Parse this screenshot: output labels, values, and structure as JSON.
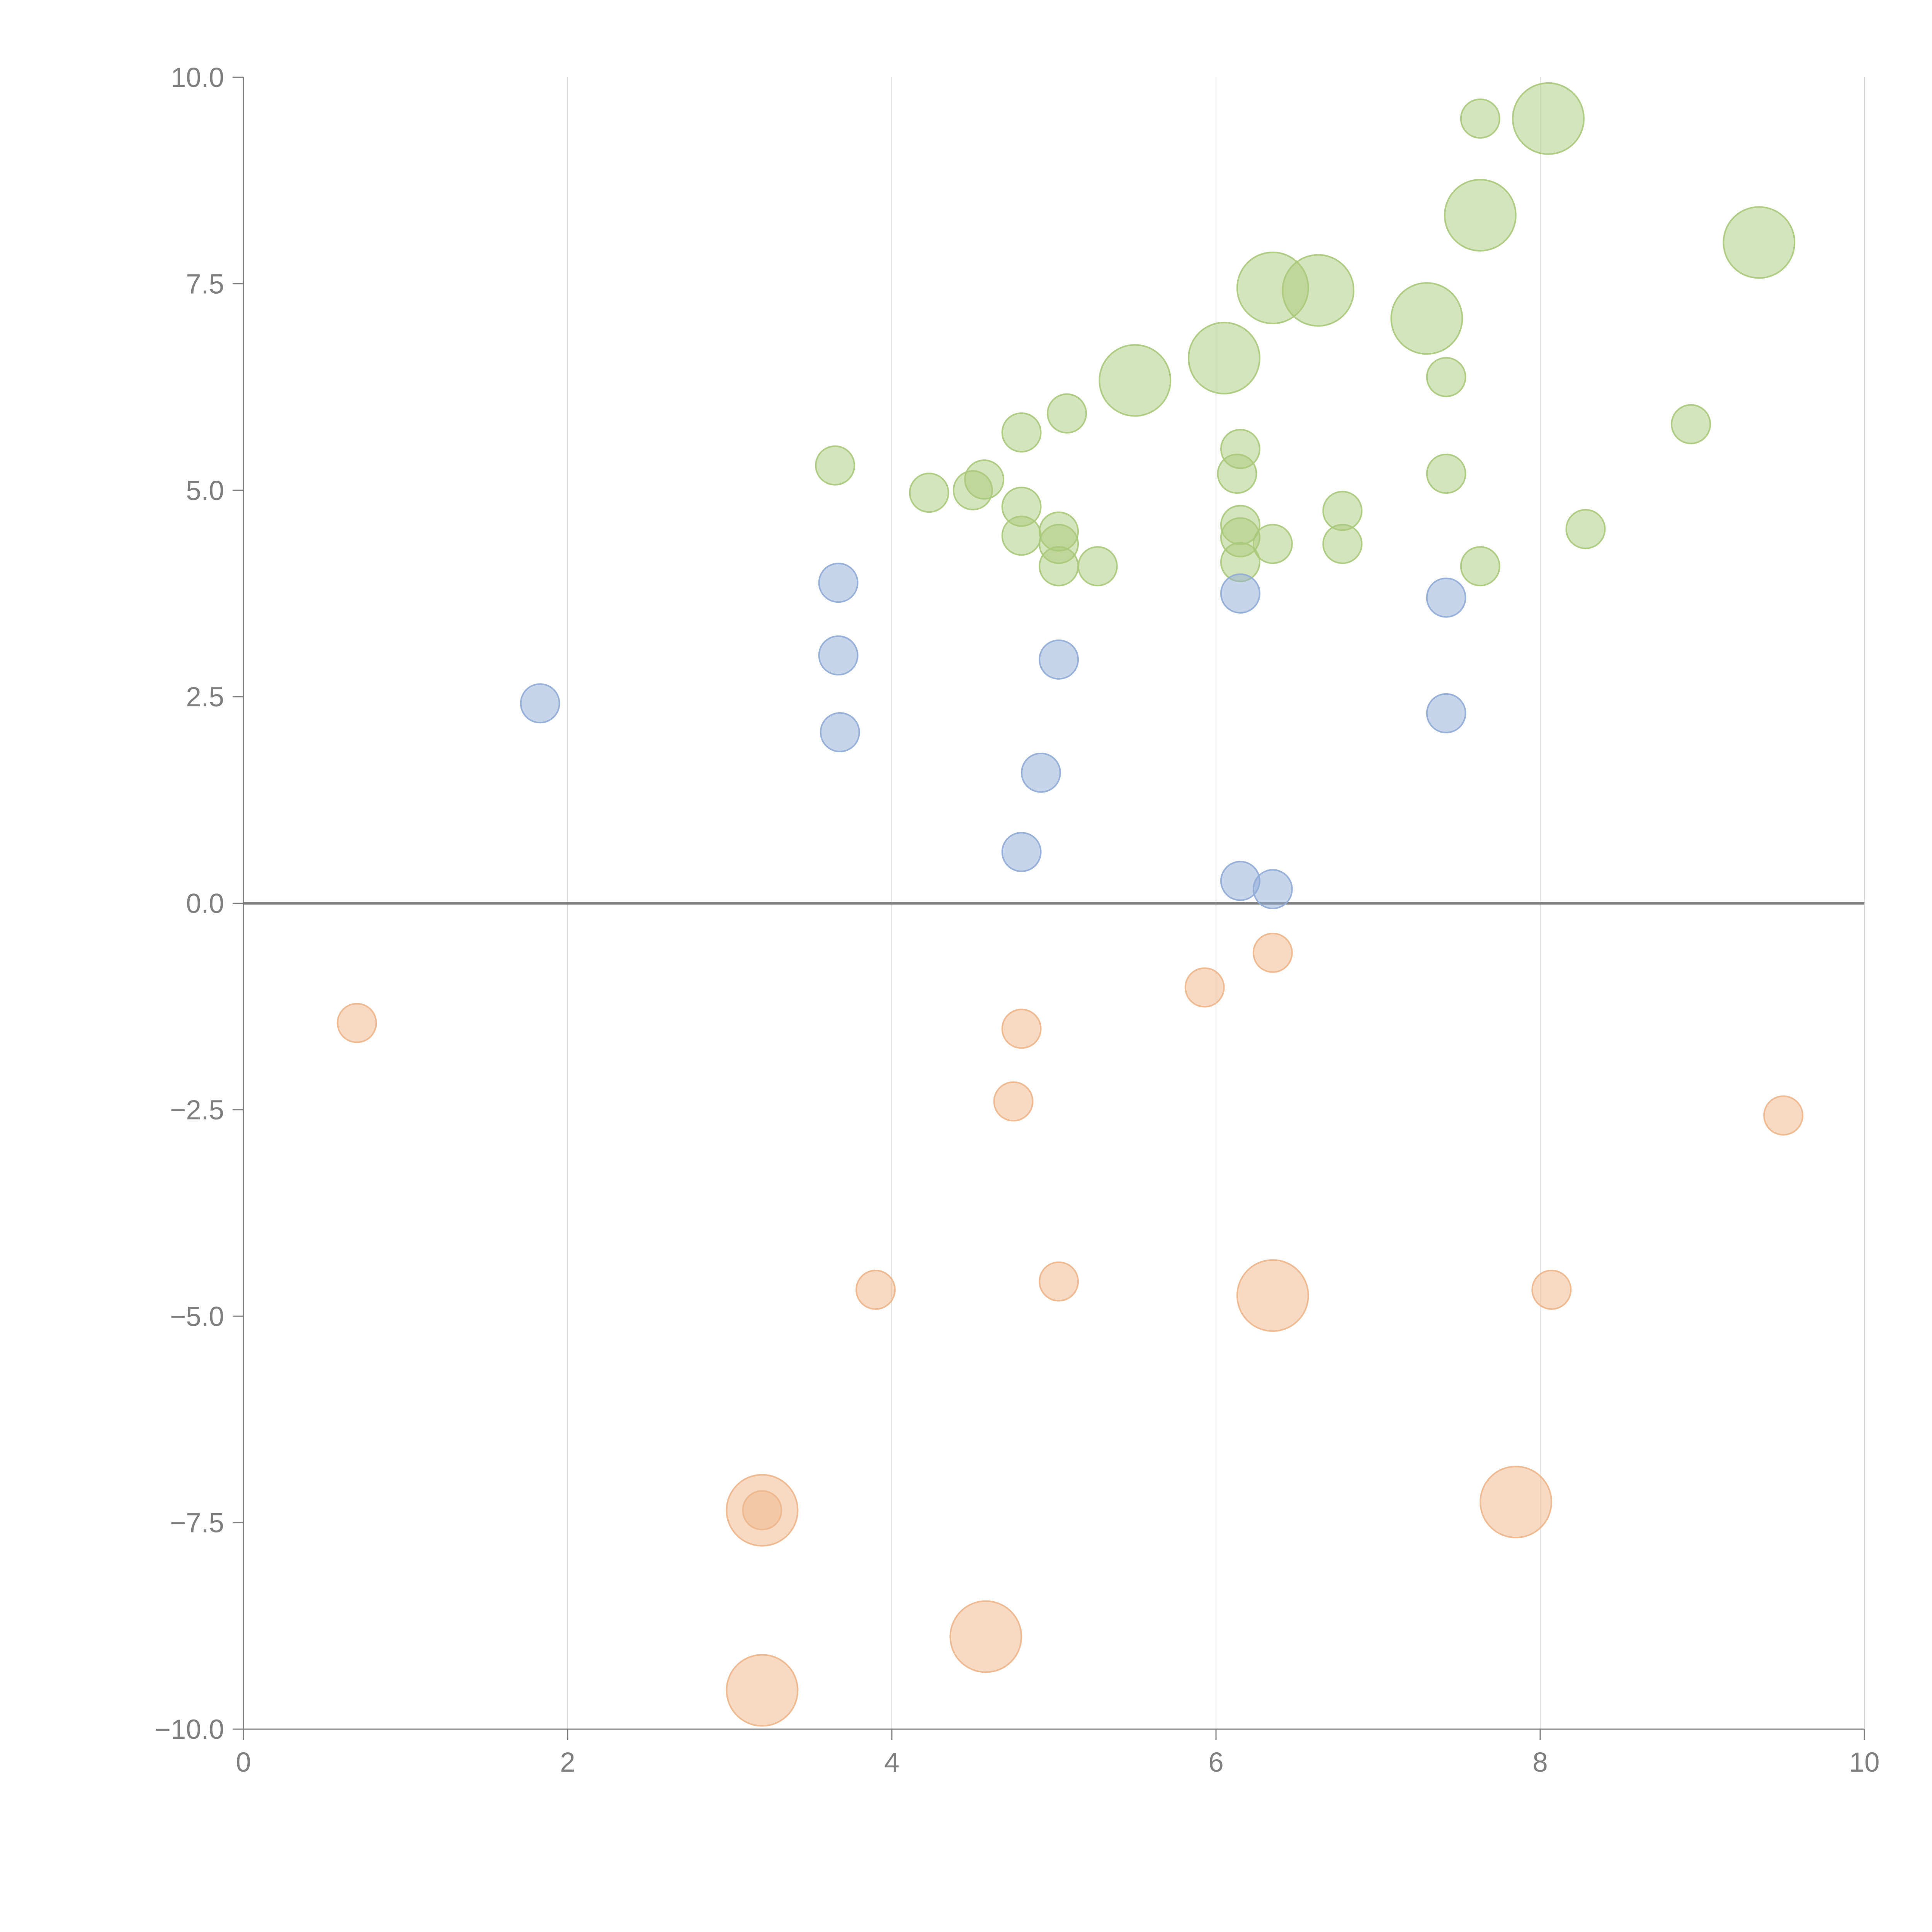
{
  "chart_data": {
    "type": "scatter",
    "subtype": "bubble",
    "title": "",
    "xlabel": "",
    "ylabel": "",
    "xlim": [
      0,
      10
    ],
    "ylim": [
      -10,
      10
    ],
    "x_ticks": [
      0,
      2,
      4,
      6,
      8,
      10
    ],
    "y_ticks": [
      -10,
      -7.5,
      -5,
      -2.5,
      0,
      2.5,
      5,
      7.5,
      10
    ],
    "x_tick_labels": [
      "0",
      "2",
      "4",
      "6",
      "8",
      "10"
    ],
    "y_tick_labels": [
      "−10.0",
      "−7.5",
      "−5.0",
      "−2.5",
      "0.0",
      "2.5",
      "5.0",
      "7.5",
      "10.0"
    ],
    "grid": {
      "vertical": true,
      "horizontal": false
    },
    "reference_line_y": 0,
    "series": [
      {
        "name": "green",
        "color": "#a9c97a",
        "points": [
          {
            "x": 3.65,
            "y": 5.3,
            "size": 1
          },
          {
            "x": 4.23,
            "y": 4.97,
            "size": 1
          },
          {
            "x": 4.5,
            "y": 5.0,
            "size": 1
          },
          {
            "x": 4.57,
            "y": 5.13,
            "size": 1
          },
          {
            "x": 4.8,
            "y": 5.7,
            "size": 1
          },
          {
            "x": 4.8,
            "y": 4.8,
            "size": 1
          },
          {
            "x": 4.8,
            "y": 4.45,
            "size": 1
          },
          {
            "x": 5.03,
            "y": 4.5,
            "size": 1
          },
          {
            "x": 5.03,
            "y": 4.35,
            "size": 1
          },
          {
            "x": 5.03,
            "y": 4.08,
            "size": 1
          },
          {
            "x": 5.08,
            "y": 5.93,
            "size": 1
          },
          {
            "x": 5.27,
            "y": 4.08,
            "size": 1
          },
          {
            "x": 5.5,
            "y": 6.33,
            "size": 3
          },
          {
            "x": 6.05,
            "y": 6.6,
            "size": 3
          },
          {
            "x": 6.13,
            "y": 5.2,
            "size": 1
          },
          {
            "x": 6.15,
            "y": 5.5,
            "size": 1
          },
          {
            "x": 6.15,
            "y": 4.58,
            "size": 1
          },
          {
            "x": 6.15,
            "y": 4.43,
            "size": 1
          },
          {
            "x": 6.15,
            "y": 4.13,
            "size": 1
          },
          {
            "x": 6.35,
            "y": 4.35,
            "size": 1
          },
          {
            "x": 6.35,
            "y": 7.45,
            "size": 3
          },
          {
            "x": 6.63,
            "y": 7.42,
            "size": 3
          },
          {
            "x": 6.78,
            "y": 4.75,
            "size": 1
          },
          {
            "x": 6.78,
            "y": 4.35,
            "size": 1
          },
          {
            "x": 7.3,
            "y": 7.08,
            "size": 3
          },
          {
            "x": 7.42,
            "y": 6.37,
            "size": 1
          },
          {
            "x": 7.42,
            "y": 5.2,
            "size": 1
          },
          {
            "x": 7.63,
            "y": 8.33,
            "size": 3
          },
          {
            "x": 7.63,
            "y": 9.5,
            "size": 1
          },
          {
            "x": 7.63,
            "y": 4.08,
            "size": 1
          },
          {
            "x": 8.05,
            "y": 9.5,
            "size": 3
          },
          {
            "x": 8.28,
            "y": 4.53,
            "size": 1
          },
          {
            "x": 8.93,
            "y": 5.8,
            "size": 1
          },
          {
            "x": 9.35,
            "y": 8.0,
            "size": 3
          }
        ]
      },
      {
        "name": "blue",
        "color": "#8fabd6",
        "points": [
          {
            "x": 1.83,
            "y": 2.42,
            "size": 1
          },
          {
            "x": 3.67,
            "y": 3.88,
            "size": 1
          },
          {
            "x": 3.67,
            "y": 3.0,
            "size": 1
          },
          {
            "x": 3.68,
            "y": 2.07,
            "size": 1
          },
          {
            "x": 4.8,
            "y": 0.62,
            "size": 1
          },
          {
            "x": 4.92,
            "y": 1.58,
            "size": 1
          },
          {
            "x": 5.03,
            "y": 2.95,
            "size": 1
          },
          {
            "x": 6.15,
            "y": 3.75,
            "size": 1
          },
          {
            "x": 6.15,
            "y": 0.27,
            "size": 1
          },
          {
            "x": 6.35,
            "y": 0.17,
            "size": 1
          },
          {
            "x": 7.42,
            "y": 3.7,
            "size": 1
          },
          {
            "x": 7.42,
            "y": 2.3,
            "size": 1
          }
        ]
      },
      {
        "name": "orange",
        "color": "#eeb58a",
        "points": [
          {
            "x": 0.7,
            "y": -1.45,
            "size": 1
          },
          {
            "x": 3.2,
            "y": -7.35,
            "size": 3
          },
          {
            "x": 3.2,
            "y": -7.35,
            "size": 1
          },
          {
            "x": 3.2,
            "y": -9.53,
            "size": 3
          },
          {
            "x": 3.9,
            "y": -4.68,
            "size": 1
          },
          {
            "x": 4.58,
            "y": -8.88,
            "size": 3
          },
          {
            "x": 4.75,
            "y": -2.4,
            "size": 1
          },
          {
            "x": 4.8,
            "y": -1.52,
            "size": 1
          },
          {
            "x": 5.03,
            "y": -4.58,
            "size": 1
          },
          {
            "x": 5.93,
            "y": -1.02,
            "size": 1
          },
          {
            "x": 6.35,
            "y": -0.6,
            "size": 1
          },
          {
            "x": 6.35,
            "y": -4.75,
            "size": 3
          },
          {
            "x": 7.85,
            "y": -7.25,
            "size": 3
          },
          {
            "x": 8.07,
            "y": -4.68,
            "size": 1
          },
          {
            "x": 9.5,
            "y": -2.57,
            "size": 1
          }
        ]
      }
    ]
  }
}
